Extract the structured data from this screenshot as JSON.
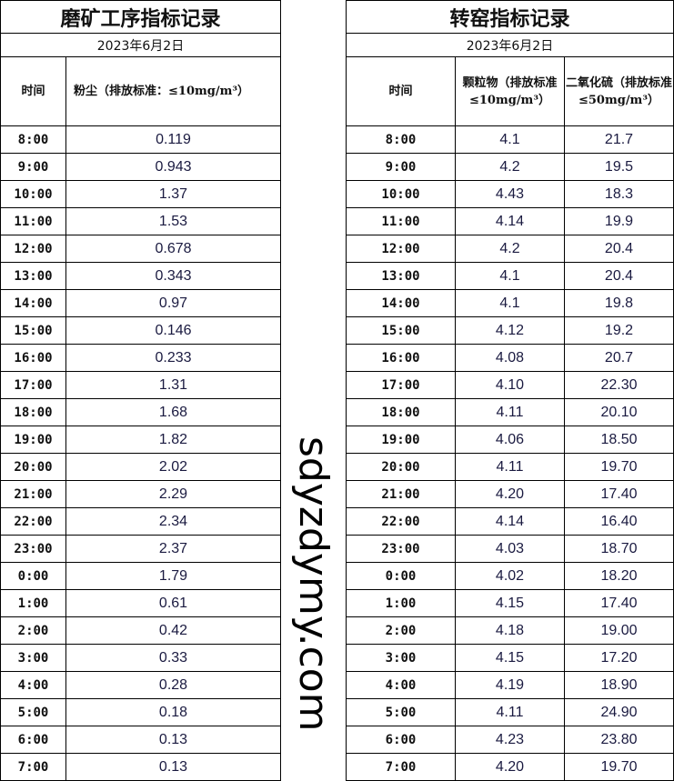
{
  "left": {
    "title": "磨矿工序指标记录",
    "date": "2023年6月2日",
    "col_time": "时间",
    "col_dust": "粉尘（排放标准：≤10mg/m³）",
    "rows": [
      [
        "8:00",
        "0.119"
      ],
      [
        "9:00",
        "0.943"
      ],
      [
        "10:00",
        "1.37"
      ],
      [
        "11:00",
        "1.53"
      ],
      [
        "12:00",
        "0.678"
      ],
      [
        "13:00",
        "0.343"
      ],
      [
        "14:00",
        "0.97"
      ],
      [
        "15:00",
        "0.146"
      ],
      [
        "16:00",
        "0.233"
      ],
      [
        "17:00",
        "1.31"
      ],
      [
        "18:00",
        "1.68"
      ],
      [
        "19:00",
        "1.82"
      ],
      [
        "20:00",
        "2.02"
      ],
      [
        "21:00",
        "2.29"
      ],
      [
        "22:00",
        "2.34"
      ],
      [
        "23:00",
        "2.37"
      ],
      [
        "0:00",
        "1.79"
      ],
      [
        "1:00",
        "0.61"
      ],
      [
        "2:00",
        "0.42"
      ],
      [
        "3:00",
        "0.33"
      ],
      [
        "4:00",
        "0.28"
      ],
      [
        "5:00",
        "0.18"
      ],
      [
        "6:00",
        "0.13"
      ],
      [
        "7:00",
        "0.13"
      ]
    ]
  },
  "right": {
    "title": "转窑指标记录",
    "date": "2023年6月2日",
    "col_time": "时间",
    "col_pm": "颗粒物（排放标准≤10mg/m³）",
    "col_so2": "二氧化硫（排放标准≤50mg/m³）",
    "rows": [
      [
        "8:00",
        "4.1",
        "21.7"
      ],
      [
        "9:00",
        "4.2",
        "19.5"
      ],
      [
        "10:00",
        "4.43",
        "18.3"
      ],
      [
        "11:00",
        "4.14",
        "19.9"
      ],
      [
        "12:00",
        "4.2",
        "20.4"
      ],
      [
        "13:00",
        "4.1",
        "20.4"
      ],
      [
        "14:00",
        "4.1",
        "19.8"
      ],
      [
        "15:00",
        "4.12",
        "19.2"
      ],
      [
        "16:00",
        "4.08",
        "20.7"
      ],
      [
        "17:00",
        "4.10",
        "22.30"
      ],
      [
        "18:00",
        "4.11",
        "20.10"
      ],
      [
        "19:00",
        "4.06",
        "18.50"
      ],
      [
        "20:00",
        "4.11",
        "19.70"
      ],
      [
        "21:00",
        "4.20",
        "17.40"
      ],
      [
        "22:00",
        "4.14",
        "16.40"
      ],
      [
        "23:00",
        "4.03",
        "18.70"
      ],
      [
        "0:00",
        "4.02",
        "18.20"
      ],
      [
        "1:00",
        "4.15",
        "17.40"
      ],
      [
        "2:00",
        "4.18",
        "19.00"
      ],
      [
        "3:00",
        "4.15",
        "17.20"
      ],
      [
        "4:00",
        "4.19",
        "18.90"
      ],
      [
        "5:00",
        "4.11",
        "24.90"
      ],
      [
        "6:00",
        "4.23",
        "23.80"
      ],
      [
        "7:00",
        "4.20",
        "19.70"
      ]
    ]
  },
  "watermark": "sdyzdymy.com"
}
